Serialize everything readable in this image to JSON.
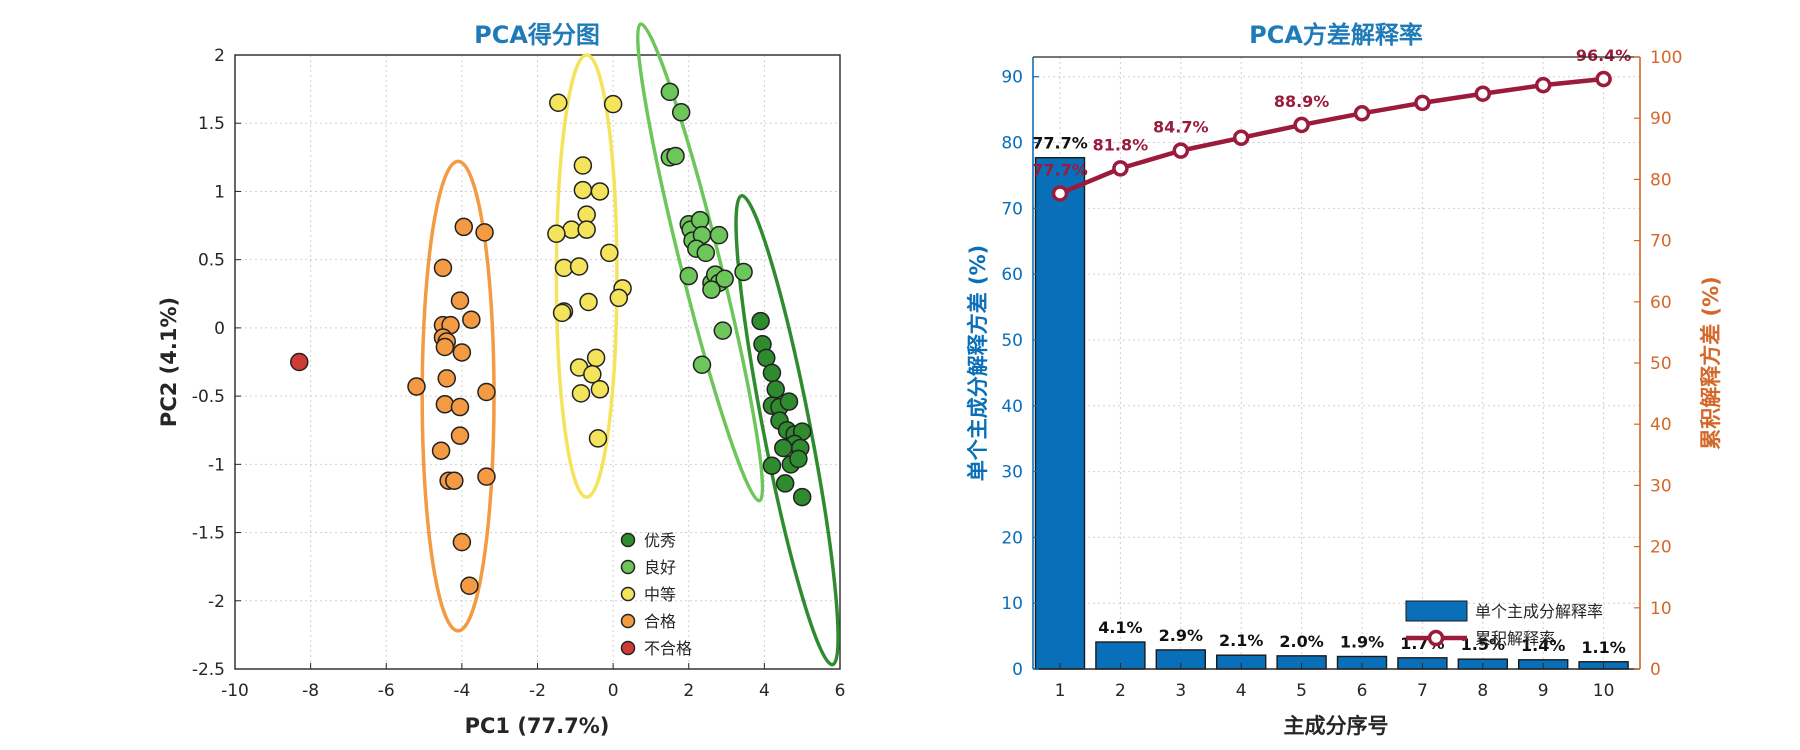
{
  "chart_data": [
    {
      "type": "scatter",
      "title": "PCA得分图",
      "xlabel": "PC1 (77.7%)",
      "ylabel": "PC2 (4.1%)",
      "xlim": [
        -10,
        6
      ],
      "ylim": [
        -2.5,
        2
      ],
      "xticks": [
        "-10",
        "-8",
        "-6",
        "-4",
        "-2",
        "0",
        "2",
        "4",
        "6"
      ],
      "yticks": [
        "-2.5",
        "-2",
        "-1.5",
        "-1",
        "-0.5",
        "0",
        "0.5",
        "1",
        "1.5",
        "2"
      ],
      "grid": true,
      "legend_position": "bottom-right",
      "series": [
        {
          "name": "优秀",
          "color": "#2e8b2e",
          "ellipse": {
            "cx": 4.6,
            "cy": -0.75,
            "a": 0.62,
            "b": 1.75,
            "angle_deg": 11
          },
          "points": [
            [
              3.9,
              0.05
            ],
            [
              3.95,
              -0.12
            ],
            [
              4.05,
              -0.22
            ],
            [
              4.2,
              -0.33
            ],
            [
              4.3,
              -0.45
            ],
            [
              4.2,
              -0.57
            ],
            [
              4.4,
              -0.58
            ],
            [
              4.65,
              -0.54
            ],
            [
              4.4,
              -0.68
            ],
            [
              4.6,
              -0.75
            ],
            [
              4.8,
              -0.78
            ],
            [
              5.0,
              -0.76
            ],
            [
              4.8,
              -0.85
            ],
            [
              4.95,
              -0.88
            ],
            [
              4.5,
              -0.88
            ],
            [
              4.2,
              -1.01
            ],
            [
              4.7,
              -1.0
            ],
            [
              4.9,
              -0.96
            ],
            [
              4.55,
              -1.14
            ],
            [
              5.0,
              -1.24
            ]
          ]
        },
        {
          "name": "良好",
          "color": "#6dc65a",
          "ellipse": {
            "cx": 2.3,
            "cy": 0.48,
            "a": 0.52,
            "b": 1.8,
            "angle_deg": 14
          },
          "points": [
            [
              1.5,
              1.73
            ],
            [
              1.8,
              1.58
            ],
            [
              1.5,
              1.25
            ],
            [
              1.65,
              1.26
            ],
            [
              2.0,
              0.76
            ],
            [
              2.05,
              0.72
            ],
            [
              2.3,
              0.79
            ],
            [
              2.1,
              0.64
            ],
            [
              2.35,
              0.68
            ],
            [
              2.8,
              0.68
            ],
            [
              2.2,
              0.58
            ],
            [
              2.45,
              0.55
            ],
            [
              2.0,
              0.38
            ],
            [
              2.6,
              0.33
            ],
            [
              2.7,
              0.39
            ],
            [
              2.8,
              0.33
            ],
            [
              2.95,
              0.36
            ],
            [
              3.45,
              0.41
            ],
            [
              2.6,
              0.28
            ],
            [
              2.9,
              -0.02
            ],
            [
              2.35,
              -0.27
            ]
          ]
        },
        {
          "name": "中等",
          "color": "#f4e45c",
          "ellipse": {
            "cx": -0.7,
            "cy": 0.38,
            "a": 0.8,
            "b": 1.62,
            "angle_deg": 0
          },
          "points": [
            [
              -1.45,
              1.65
            ],
            [
              0.0,
              1.64
            ],
            [
              -0.8,
              1.19
            ],
            [
              -0.8,
              1.01
            ],
            [
              -0.35,
              1.0
            ],
            [
              -0.7,
              0.83
            ],
            [
              -1.1,
              0.72
            ],
            [
              -0.7,
              0.72
            ],
            [
              -1.5,
              0.69
            ],
            [
              -1.3,
              0.44
            ],
            [
              -0.9,
              0.45
            ],
            [
              -0.1,
              0.55
            ],
            [
              0.25,
              0.29
            ],
            [
              0.15,
              0.22
            ],
            [
              -1.3,
              0.12
            ],
            [
              -1.35,
              0.11
            ],
            [
              -0.65,
              0.19
            ],
            [
              -0.45,
              -0.22
            ],
            [
              -0.9,
              -0.29
            ],
            [
              -0.55,
              -0.34
            ],
            [
              -0.35,
              -0.45
            ],
            [
              -0.85,
              -0.48
            ],
            [
              -0.4,
              -0.81
            ]
          ]
        },
        {
          "name": "合格",
          "color": "#f39a42",
          "ellipse": {
            "cx": -4.1,
            "cy": -0.5,
            "a": 0.95,
            "b": 1.72,
            "angle_deg": 0
          },
          "points": [
            [
              -3.95,
              0.74
            ],
            [
              -3.4,
              0.7
            ],
            [
              -4.5,
              0.44
            ],
            [
              -4.05,
              0.2
            ],
            [
              -4.5,
              0.02
            ],
            [
              -4.3,
              0.02
            ],
            [
              -3.75,
              0.06
            ],
            [
              -4.5,
              -0.07
            ],
            [
              -4.4,
              -0.1
            ],
            [
              -4.45,
              -0.14
            ],
            [
              -4.0,
              -0.18
            ],
            [
              -5.2,
              -0.43
            ],
            [
              -4.4,
              -0.37
            ],
            [
              -3.35,
              -0.47
            ],
            [
              -4.45,
              -0.56
            ],
            [
              -4.05,
              -0.58
            ],
            [
              -4.55,
              -0.9
            ],
            [
              -4.05,
              -0.79
            ],
            [
              -4.35,
              -1.12
            ],
            [
              -4.2,
              -1.12
            ],
            [
              -3.35,
              -1.09
            ],
            [
              -4.0,
              -1.57
            ],
            [
              -3.8,
              -1.89
            ]
          ]
        },
        {
          "name": "不合格",
          "color": "#cf3b37",
          "points": [
            [
              -8.3,
              -0.25
            ]
          ]
        }
      ]
    },
    {
      "type": "bar",
      "title": "PCA方差解释率",
      "xlabel": "主成分序号",
      "ylabel": "单个主成分解释方差 (%)",
      "y2label": "累积解释方差 (%)",
      "categories": [
        "1",
        "2",
        "3",
        "4",
        "5",
        "6",
        "7",
        "8",
        "9",
        "10"
      ],
      "ylim": [
        0,
        93
      ],
      "y2lim": [
        0,
        100
      ],
      "yticks": [
        "0",
        "10",
        "20",
        "30",
        "40",
        "50",
        "60",
        "70",
        "80",
        "90"
      ],
      "y2ticks": [
        "0",
        "10",
        "20",
        "30",
        "40",
        "50",
        "60",
        "70",
        "80",
        "90",
        "100"
      ],
      "grid": true,
      "legend_position": "bottom-right",
      "series": [
        {
          "name": "单个主成分解释率",
          "type": "bar",
          "axis": "left",
          "color": "#0a6fb9",
          "values": [
            77.7,
            4.1,
            2.9,
            2.1,
            2.0,
            1.9,
            1.7,
            1.5,
            1.4,
            1.1
          ],
          "labels": [
            "77.7%",
            "4.1%",
            "2.9%",
            "2.1%",
            "2.0%",
            "1.9%",
            "1.7%",
            "1.5%",
            "1.4%",
            "1.1%"
          ]
        },
        {
          "name": "累积解释率",
          "type": "line",
          "axis": "right",
          "color": "#9b1b3c",
          "values": [
            77.7,
            81.8,
            84.7,
            86.8,
            88.9,
            90.8,
            92.5,
            94.0,
            95.4,
            96.4
          ],
          "labels": [
            "77.7%",
            "81.8%",
            "84.7%",
            "88.9%",
            "96.4%"
          ],
          "labeled_indices": [
            0,
            1,
            2,
            4,
            9
          ]
        }
      ]
    }
  ]
}
